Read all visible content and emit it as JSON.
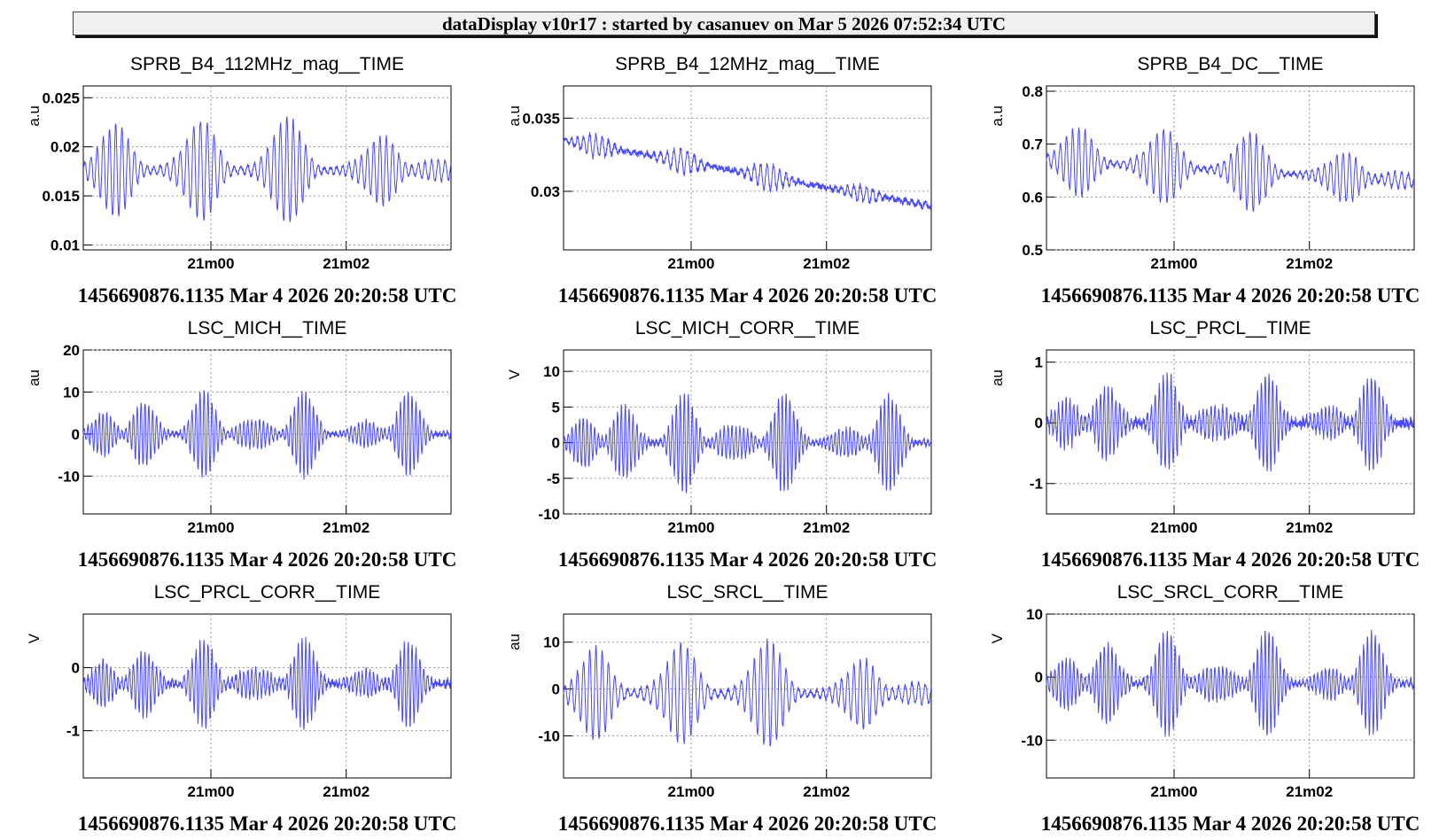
{
  "header": {
    "title": "dataDisplay v10r17 : started by casanuev on Mar  5 2026 07:52:34 UTC"
  },
  "colors": {
    "trace": "#4a4af5",
    "grid": "#9a9a9a"
  },
  "chart_data": [
    {
      "type": "line",
      "title": "SPRB_B4_112MHz_mag__TIME",
      "ylabel": "a.u",
      "xticks": [
        "21m00",
        "21m02"
      ],
      "yticks": [
        {
          "v": 0.01,
          "l": "0.01"
        },
        {
          "v": 0.015,
          "l": "0.015"
        },
        {
          "v": 0.02,
          "l": "0.02"
        },
        {
          "v": 0.025,
          "l": "0.025"
        }
      ],
      "ylim": [
        0.0095,
        0.0262
      ],
      "timestamp": "1456690876.1135 Mar 4 2026 20:20:58 UTC",
      "trace": {
        "base": 0.0176,
        "amp": 0.0062,
        "noise": 0.0002,
        "fast": 0.6,
        "seed": 1
      }
    },
    {
      "type": "line",
      "title": "SPRB_B4_12MHz_mag__TIME",
      "ylabel": "a.u",
      "xticks": [
        "21m00",
        "21m02"
      ],
      "yticks": [
        {
          "v": 0.03,
          "l": "0.03"
        },
        {
          "v": 0.035,
          "l": "0.035"
        }
      ],
      "ylim": [
        0.026,
        0.0372
      ],
      "timestamp": "1456690876.1135 Mar 4 2026 20:20:58 UTC",
      "trace": {
        "base": 0.0335,
        "drift": -0.0045,
        "amp": 0.001,
        "noise": 0.0002,
        "fast": 0.6,
        "seed": 2
      }
    },
    {
      "type": "line",
      "title": "SPRB_B4_DC__TIME",
      "ylabel": "a.u",
      "xticks": [
        "21m00",
        "21m02"
      ],
      "yticks": [
        {
          "v": 0.5,
          "l": "0.5"
        },
        {
          "v": 0.6,
          "l": "0.6"
        },
        {
          "v": 0.7,
          "l": "0.7"
        },
        {
          "v": 0.8,
          "l": "0.8"
        }
      ],
      "ylim": [
        0.5,
        0.81
      ],
      "timestamp": "1456690876.1135 Mar 4 2026 20:20:58 UTC",
      "trace": {
        "base": 0.67,
        "drift": -0.04,
        "amp": 0.085,
        "noise": 0.004,
        "fast": 0.6,
        "seed": 3
      }
    },
    {
      "type": "line",
      "title": "LSC_MICH__TIME",
      "ylabel": "au",
      "xticks": [
        "21m00",
        "21m02"
      ],
      "yticks": [
        {
          "v": -10,
          "l": "-10"
        },
        {
          "v": 0,
          "l": "0"
        },
        {
          "v": 10,
          "l": "10"
        },
        {
          "v": 20,
          "l": "20"
        }
      ],
      "ylim": [
        -19,
        20
      ],
      "timestamp": "1456690876.1135 Mar 4 2026 20:20:58 UTC",
      "trace": {
        "base": 0,
        "amp": 11,
        "noise": 0.6,
        "fast": 1,
        "seed": 4
      }
    },
    {
      "type": "line",
      "title": "LSC_MICH_CORR__TIME",
      "ylabel": "V",
      "xticks": [
        "21m00",
        "21m02"
      ],
      "yticks": [
        {
          "v": -10,
          "l": "-10"
        },
        {
          "v": -5,
          "l": "-5"
        },
        {
          "v": 0,
          "l": "0"
        },
        {
          "v": 5,
          "l": "5"
        },
        {
          "v": 10,
          "l": "10"
        }
      ],
      "ylim": [
        -10,
        13
      ],
      "timestamp": "1456690876.1135 Mar 4 2026 20:20:58 UTC",
      "trace": {
        "base": 0,
        "amp": 7.5,
        "noise": 0.4,
        "fast": 1,
        "seed": 5
      }
    },
    {
      "type": "line",
      "title": "LSC_PRCL__TIME",
      "ylabel": "au",
      "xticks": [
        "21m00",
        "21m02"
      ],
      "yticks": [
        {
          "v": -1,
          "l": "-1"
        },
        {
          "v": 0,
          "l": "0"
        },
        {
          "v": 1,
          "l": "1"
        }
      ],
      "ylim": [
        -1.5,
        1.2
      ],
      "timestamp": "1456690876.1135 Mar 4 2026 20:20:58 UTC",
      "trace": {
        "base": 0,
        "amp": 0.85,
        "noise": 0.08,
        "fast": 1,
        "seed": 6
      }
    },
    {
      "type": "line",
      "title": "LSC_PRCL_CORR__TIME",
      "ylabel": "V",
      "xticks": [
        "21m00",
        "21m02"
      ],
      "yticks": [
        {
          "v": -1,
          "l": "-1"
        },
        {
          "v": 0,
          "l": "0"
        }
      ],
      "ylim": [
        -1.75,
        0.85
      ],
      "timestamp": "1456690876.1135 Mar 4 2026 20:20:58 UTC",
      "trace": {
        "base": -0.25,
        "amp": 0.75,
        "noise": 0.06,
        "fast": 1,
        "seed": 7
      }
    },
    {
      "type": "line",
      "title": "LSC_SRCL__TIME",
      "ylabel": "au",
      "xticks": [
        "21m00",
        "21m02"
      ],
      "yticks": [
        {
          "v": -10,
          "l": "-10"
        },
        {
          "v": 0,
          "l": "0"
        },
        {
          "v": 10,
          "l": "10"
        }
      ],
      "ylim": [
        -19,
        16
      ],
      "timestamp": "1456690876.1135 Mar 4 2026 20:20:58 UTC",
      "trace": {
        "base": -1,
        "amp": 13,
        "noise": 0.5,
        "fast": 0.6,
        "seed": 8
      }
    },
    {
      "type": "line",
      "title": "LSC_SRCL_CORR__TIME",
      "ylabel": "V",
      "xticks": [
        "21m00",
        "21m02"
      ],
      "yticks": [
        {
          "v": -10,
          "l": "-10"
        },
        {
          "v": 0,
          "l": "0"
        },
        {
          "v": 10,
          "l": "10"
        }
      ],
      "ylim": [
        -16,
        10
      ],
      "timestamp": "1456690876.1135 Mar 4 2026 20:20:58 UTC",
      "trace": {
        "base": -1,
        "amp": 9,
        "noise": 0.5,
        "fast": 1,
        "seed": 9
      }
    }
  ]
}
